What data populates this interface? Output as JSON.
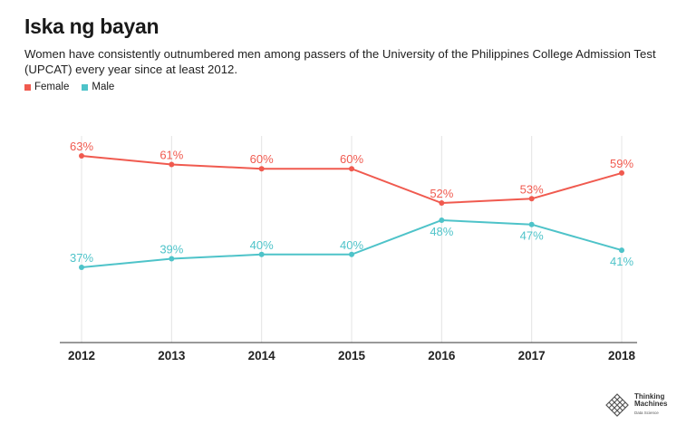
{
  "title": "Iska ng bayan",
  "subtitle": "Women have consistently outnumbered men among passers of the University of the Philippines College Admission Test (UPCAT) every year since at least 2012.",
  "logo": {
    "line1": "Thinking",
    "line2": "Machines",
    "line3": "Data Science"
  },
  "chart_data": {
    "type": "line",
    "title": "Iska ng bayan",
    "xlabel": "",
    "ylabel": "",
    "x": [
      "2012",
      "2013",
      "2014",
      "2015",
      "2016",
      "2017",
      "2018"
    ],
    "ylim": [
      20,
      70
    ],
    "grid": false,
    "legend_position": "top-left",
    "series": [
      {
        "name": "Female",
        "color": "#f05a4f",
        "values": [
          63,
          61,
          60,
          60,
          52,
          53,
          59
        ],
        "labels": [
          "63%",
          "61%",
          "60%",
          "60%",
          "52%",
          "53%",
          "59%"
        ]
      },
      {
        "name": "Male",
        "color": "#4ec3c9",
        "values": [
          37,
          39,
          40,
          40,
          48,
          47,
          41
        ],
        "labels": [
          "37%",
          "39%",
          "40%",
          "40%",
          "48%",
          "47%",
          "41%"
        ]
      }
    ]
  }
}
